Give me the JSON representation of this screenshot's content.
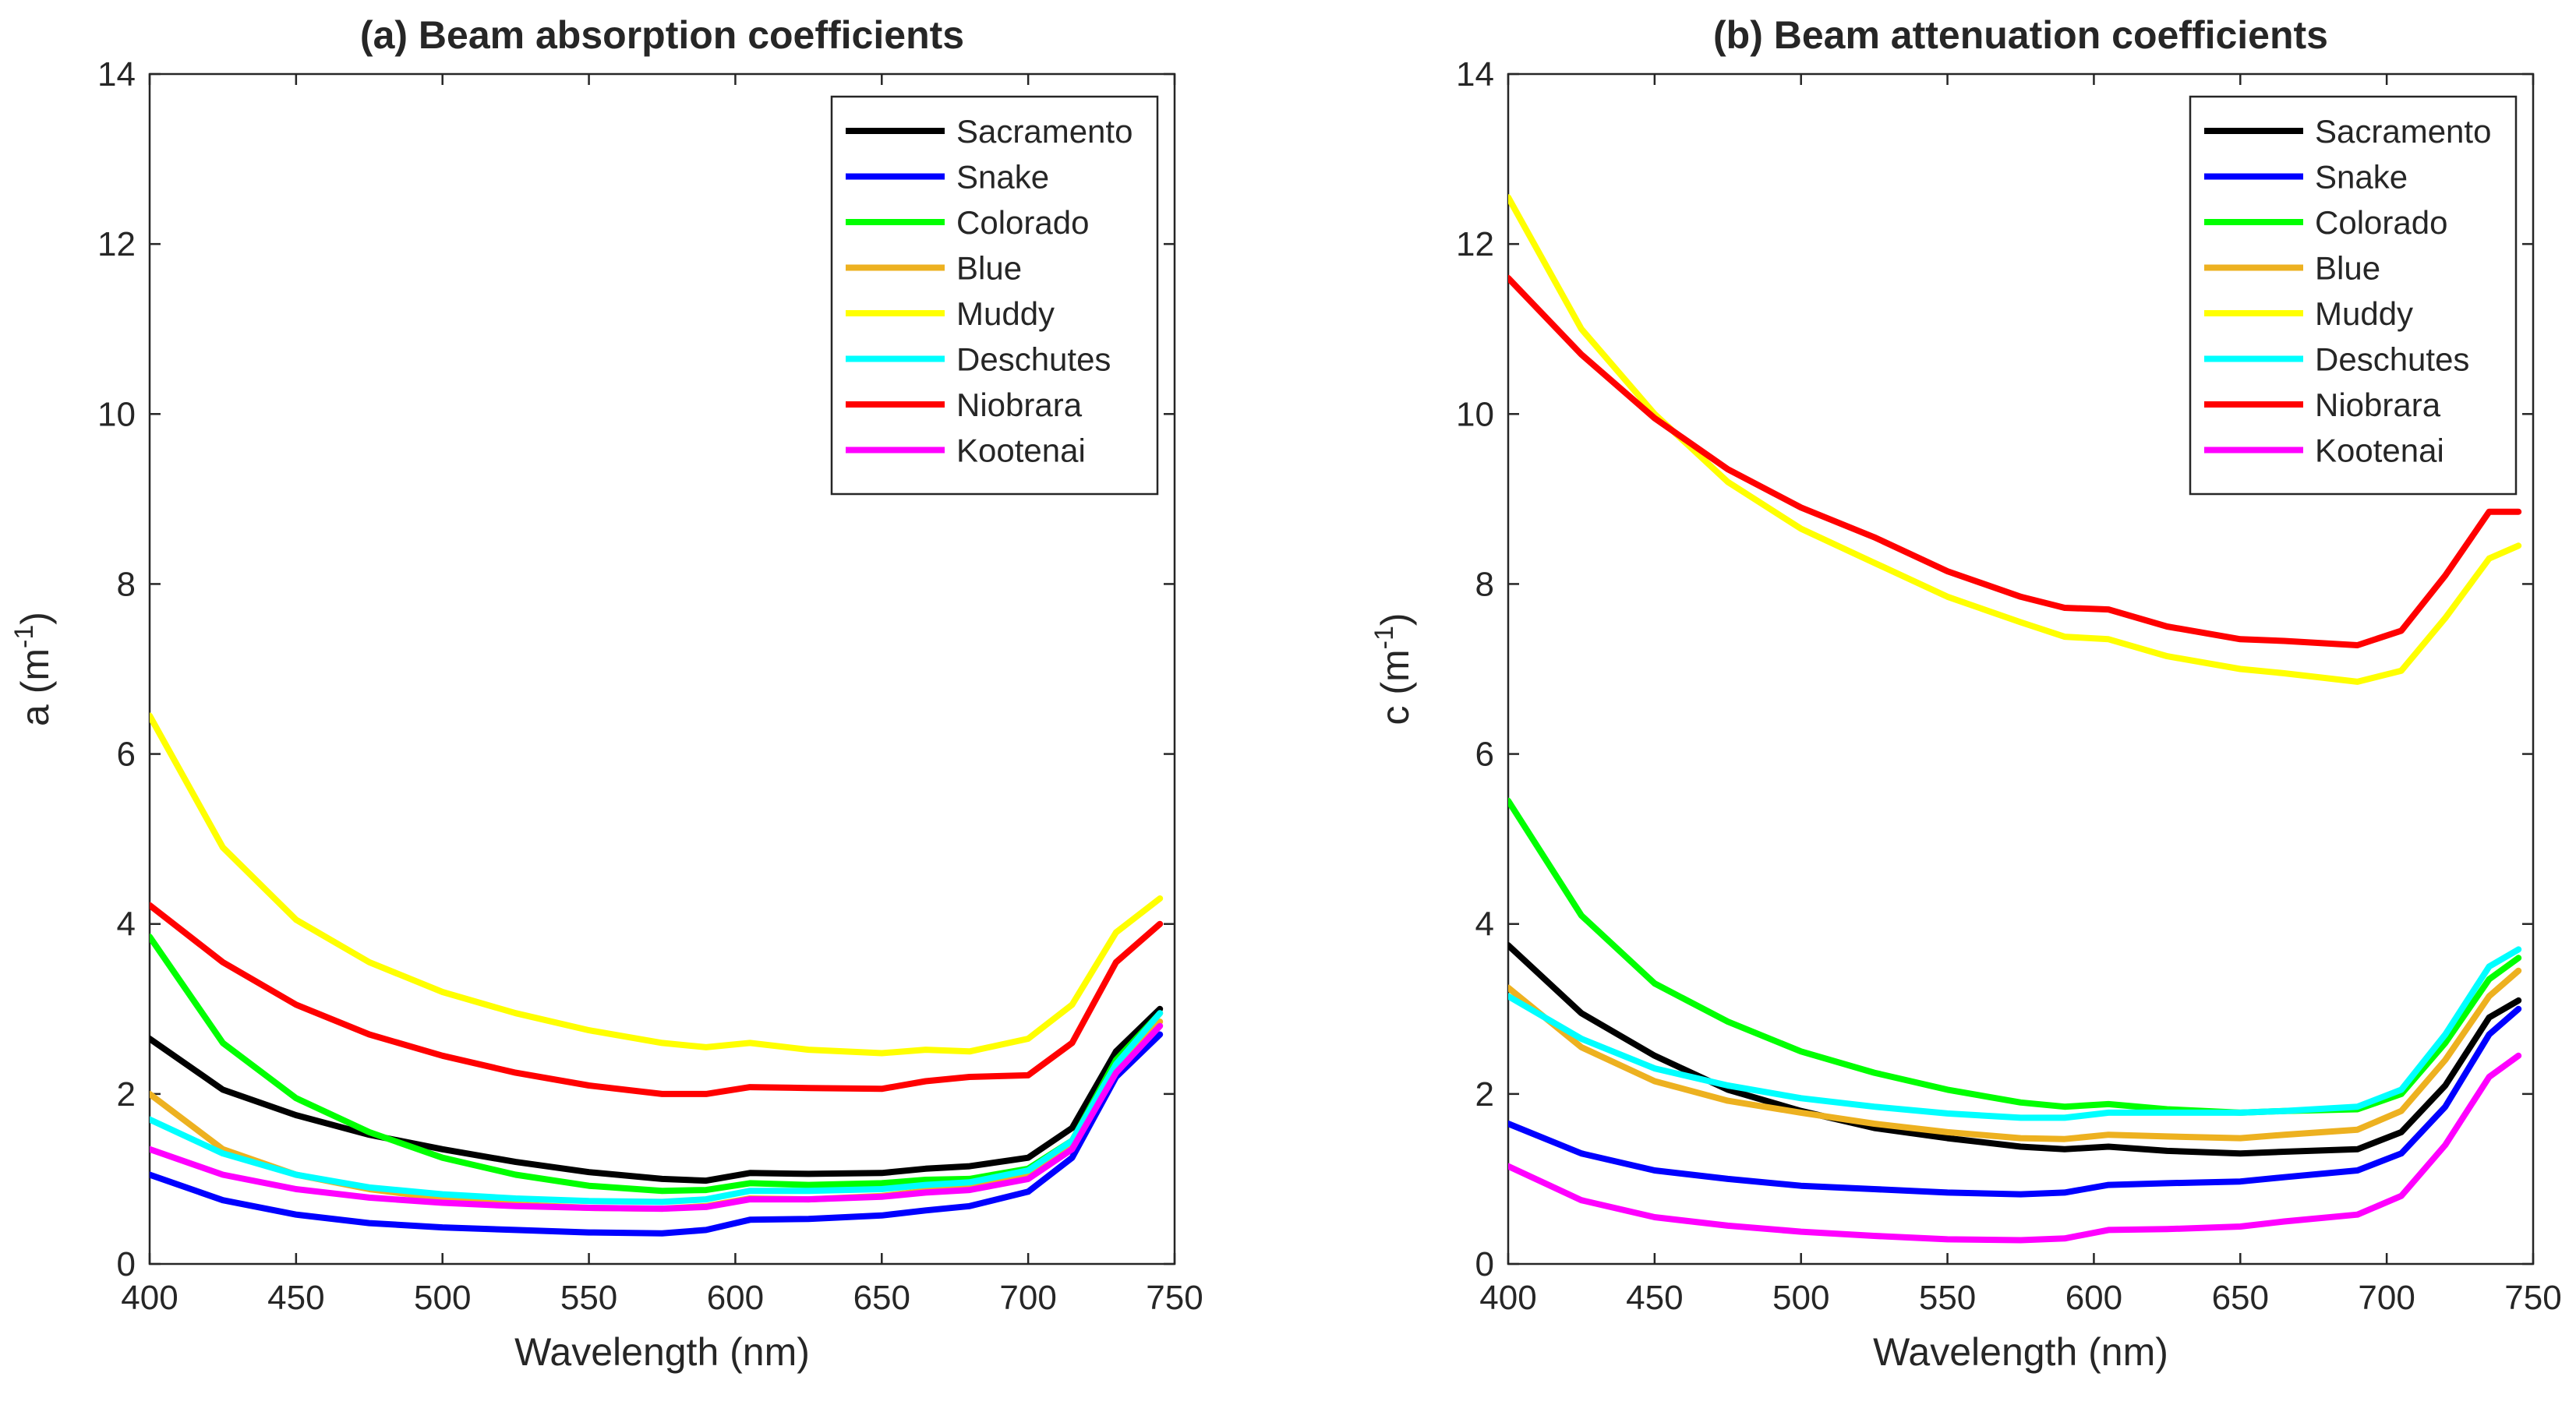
{
  "chart_data": [
    {
      "type": "line",
      "title": "(a) Beam absorption coefficients",
      "xlabel": "Wavelength (nm)",
      "ylabel_base": "a (m",
      "ylabel_sup": "-1",
      "ylabel_close": ")",
      "xlim": [
        400,
        750
      ],
      "ylim": [
        0,
        14
      ],
      "xticks": [
        400,
        450,
        500,
        550,
        600,
        650,
        700,
        750
      ],
      "yticks": [
        0,
        2,
        4,
        6,
        8,
        10,
        12,
        14
      ],
      "legend": "top-right",
      "x": [
        400,
        425,
        450,
        475,
        500,
        525,
        550,
        575,
        590,
        605,
        625,
        650,
        665,
        680,
        700,
        715,
        730,
        745
      ],
      "series": [
        {
          "name": "Sacramento",
          "color": "#000000",
          "values": [
            2.65,
            2.05,
            1.75,
            1.52,
            1.35,
            1.2,
            1.08,
            1.0,
            0.98,
            1.07,
            1.06,
            1.07,
            1.12,
            1.15,
            1.25,
            1.6,
            2.5,
            3.0
          ]
        },
        {
          "name": "Snake",
          "color": "#0000FF",
          "values": [
            1.05,
            0.75,
            0.58,
            0.48,
            0.43,
            0.4,
            0.37,
            0.36,
            0.4,
            0.52,
            0.53,
            0.57,
            0.63,
            0.68,
            0.85,
            1.25,
            2.2,
            2.7
          ]
        },
        {
          "name": "Colorado",
          "color": "#00FF00",
          "values": [
            3.85,
            2.6,
            1.95,
            1.55,
            1.25,
            1.05,
            0.92,
            0.86,
            0.87,
            0.95,
            0.93,
            0.95,
            0.99,
            1.0,
            1.12,
            1.45,
            2.4,
            2.95
          ]
        },
        {
          "name": "Blue",
          "color": "#EDB120",
          "values": [
            2.0,
            1.35,
            1.05,
            0.88,
            0.77,
            0.7,
            0.66,
            0.65,
            0.68,
            0.77,
            0.76,
            0.8,
            0.86,
            0.9,
            1.05,
            1.4,
            2.3,
            2.85
          ]
        },
        {
          "name": "Muddy",
          "color": "#FFFF00",
          "values": [
            6.45,
            4.9,
            4.05,
            3.55,
            3.2,
            2.95,
            2.75,
            2.6,
            2.55,
            2.6,
            2.52,
            2.48,
            2.52,
            2.5,
            2.65,
            3.05,
            3.9,
            4.3
          ]
        },
        {
          "name": "Deschutes",
          "color": "#00FFFF",
          "values": [
            1.7,
            1.3,
            1.05,
            0.9,
            0.82,
            0.77,
            0.74,
            0.73,
            0.76,
            0.86,
            0.86,
            0.88,
            0.93,
            0.96,
            1.1,
            1.45,
            2.35,
            2.95
          ]
        },
        {
          "name": "Niobrara",
          "color": "#FF0000",
          "values": [
            4.22,
            3.55,
            3.05,
            2.7,
            2.45,
            2.25,
            2.1,
            2.0,
            2.0,
            2.08,
            2.07,
            2.06,
            2.15,
            2.2,
            2.22,
            2.6,
            3.55,
            4.0
          ]
        },
        {
          "name": "Kootenai",
          "color": "#FF00FF",
          "values": [
            1.35,
            1.05,
            0.88,
            0.78,
            0.72,
            0.68,
            0.66,
            0.65,
            0.67,
            0.76,
            0.76,
            0.79,
            0.84,
            0.87,
            1.0,
            1.35,
            2.25,
            2.8
          ]
        }
      ]
    },
    {
      "type": "line",
      "title": "(b) Beam attenuation coefficients",
      "xlabel": "Wavelength (nm)",
      "ylabel_base": "c (m",
      "ylabel_sup": "-1",
      "ylabel_close": ")",
      "xlim": [
        400,
        750
      ],
      "ylim": [
        0,
        14
      ],
      "xticks": [
        400,
        450,
        500,
        550,
        600,
        650,
        700,
        750
      ],
      "yticks": [
        0,
        2,
        4,
        6,
        8,
        10,
        12,
        14
      ],
      "legend": "top-right",
      "x": [
        400,
        425,
        450,
        475,
        500,
        525,
        550,
        575,
        590,
        605,
        625,
        650,
        665,
        690,
        705,
        720,
        735,
        745
      ],
      "series": [
        {
          "name": "Sacramento",
          "color": "#000000",
          "values": [
            3.75,
            2.95,
            2.45,
            2.05,
            1.8,
            1.6,
            1.48,
            1.38,
            1.35,
            1.38,
            1.33,
            1.3,
            1.32,
            1.35,
            1.55,
            2.1,
            2.9,
            3.1
          ]
        },
        {
          "name": "Snake",
          "color": "#0000FF",
          "values": [
            1.65,
            1.3,
            1.1,
            1.0,
            0.92,
            0.88,
            0.84,
            0.82,
            0.84,
            0.93,
            0.95,
            0.97,
            1.02,
            1.1,
            1.3,
            1.85,
            2.7,
            3.0
          ]
        },
        {
          "name": "Colorado",
          "color": "#00FF00",
          "values": [
            5.45,
            4.1,
            3.3,
            2.85,
            2.5,
            2.25,
            2.05,
            1.9,
            1.85,
            1.88,
            1.82,
            1.78,
            1.8,
            1.82,
            2.0,
            2.6,
            3.35,
            3.6
          ]
        },
        {
          "name": "Blue",
          "color": "#EDB120",
          "values": [
            3.25,
            2.55,
            2.15,
            1.92,
            1.78,
            1.65,
            1.55,
            1.48,
            1.47,
            1.52,
            1.5,
            1.48,
            1.52,
            1.58,
            1.8,
            2.4,
            3.15,
            3.45
          ]
        },
        {
          "name": "Muddy",
          "color": "#FFFF00",
          "values": [
            12.55,
            11.0,
            10.0,
            9.2,
            8.65,
            8.25,
            7.85,
            7.55,
            7.38,
            7.35,
            7.15,
            7.0,
            6.95,
            6.85,
            6.98,
            7.6,
            8.3,
            8.45
          ]
        },
        {
          "name": "Deschutes",
          "color": "#00FFFF",
          "values": [
            3.15,
            2.65,
            2.3,
            2.1,
            1.95,
            1.85,
            1.77,
            1.72,
            1.72,
            1.78,
            1.78,
            1.78,
            1.8,
            1.85,
            2.05,
            2.7,
            3.5,
            3.7
          ]
        },
        {
          "name": "Niobrara",
          "color": "#FF0000",
          "values": [
            11.6,
            10.7,
            9.95,
            9.35,
            8.9,
            8.55,
            8.15,
            7.85,
            7.72,
            7.7,
            7.5,
            7.35,
            7.33,
            7.28,
            7.45,
            8.1,
            8.85,
            8.85
          ]
        },
        {
          "name": "Kootenai",
          "color": "#FF00FF",
          "values": [
            1.15,
            0.75,
            0.55,
            0.45,
            0.38,
            0.33,
            0.29,
            0.28,
            0.3,
            0.4,
            0.41,
            0.44,
            0.5,
            0.58,
            0.8,
            1.4,
            2.2,
            2.45
          ]
        }
      ]
    }
  ]
}
